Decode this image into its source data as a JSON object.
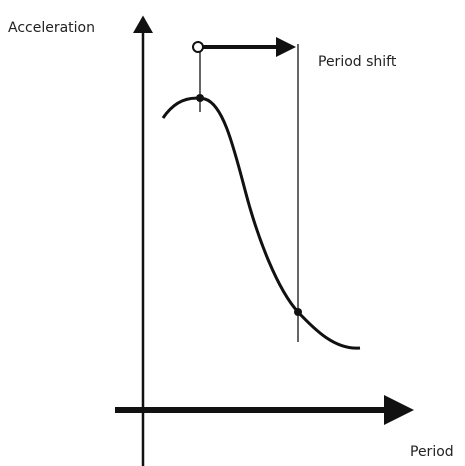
{
  "labels": {
    "y_axis": "Acceleration",
    "x_axis": "Period",
    "annotation": "Period shift"
  }
}
